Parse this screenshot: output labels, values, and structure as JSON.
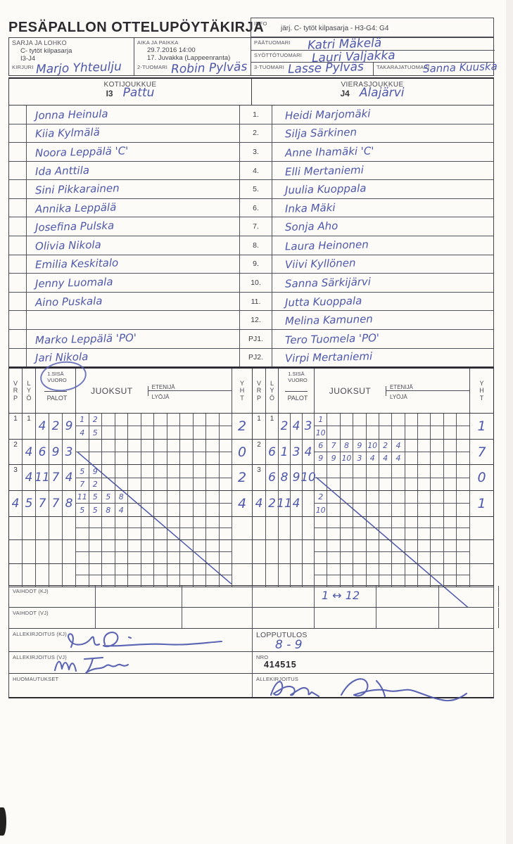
{
  "header": {
    "title": "PESÄPALLON OTTELUPÖYTÄKIRJA",
    "info_label": "INFO",
    "info_value": "järj. C- tytöt kilpasarja - H3-G4: G4",
    "sarja_label": "SARJA JA LOHKO",
    "sarja_line1": "C- tytöt kilpasarja",
    "sarja_line2": "I3-J4",
    "aika_label": "AIKA JA PAIKKA",
    "aika_line1": "29.7.2016 14:00",
    "aika_line2": "17. Juvakka (Lappeenranta)",
    "paatuomari_label": "PÄÄTUOMARI",
    "paatuomari_value": "Katri Mäkelä",
    "syottotuomari_label": "SYÖTTÖTUOMARI",
    "syottotuomari_value": "Lauri Valjakka",
    "kirjuri_label": "KIRJURI",
    "kirjuri_value": "Marjo Yhteulju",
    "tuomari2_label": "2-TUOMARI",
    "tuomari2_value": "Robin Pylväs",
    "tuomari3_label": "3-TUOMARI",
    "tuomari3_value": "Lasse Pylväs",
    "takaraja_label": "TAKARAJATUOMARI",
    "takaraja_value": "Sanna Kuuska"
  },
  "teams": {
    "home_label": "KOTIJOUKKUE",
    "home_code": "I3",
    "home_name": "Pattu",
    "away_label": "VIERASJOUKKUE",
    "away_code": "J4",
    "away_name": "Alajärvi"
  },
  "roster": {
    "rows": [
      {
        "num": "1.",
        "home": "Jonna Heinula",
        "away": "Heidi Marjomäki"
      },
      {
        "num": "2.",
        "home": "Kiia Kylmälä",
        "away": "Silja Särkinen"
      },
      {
        "num": "3.",
        "home": "Noora Leppälä  'C'",
        "away": "Anne Ihamäki 'C'"
      },
      {
        "num": "4.",
        "home": "Ida Anttila",
        "away": "Elli Mertaniemi"
      },
      {
        "num": "5.",
        "home": "Sini Pikkarainen",
        "away": "Juulia Kuoppala"
      },
      {
        "num": "6.",
        "home": "Annika Leppälä",
        "away": "Inka Mäki"
      },
      {
        "num": "7.",
        "home": "Josefina Pulska",
        "away": "Sonja Aho"
      },
      {
        "num": "8.",
        "home": "Olivia Nikola",
        "away": "Laura Heinonen"
      },
      {
        "num": "9.",
        "home": "Emilia Keskitalo",
        "away": "Viivi Kyllönen"
      },
      {
        "num": "10.",
        "home": "Jenny Luomala",
        "away": "Sanna Särkijärvi"
      },
      {
        "num": "11.",
        "home": "Aino Puskala",
        "away": "Jutta Kuoppala"
      },
      {
        "num": "12.",
        "home": "",
        "away": "Melina Kamunen"
      },
      {
        "num": "PJ1.",
        "home": "Marko Leppälä 'PO'",
        "away": "Tero Tuomela 'PO'"
      },
      {
        "num": "PJ2.",
        "home": "Jari Nikola",
        "away": "Virpi Mertaniemi"
      }
    ]
  },
  "grid": {
    "headers": {
      "vrp": "VRP",
      "lyo": "LYÖ",
      "sisavuoro_line1": "1.SISÄ",
      "sisavuoro_line2": "VUORO",
      "palot": "PALOT",
      "juoksut": "JUOKSUT",
      "etenija": "ETENIJÄ",
      "lyoja": "LYÖJÄ",
      "yht": "YHT"
    },
    "left_rows": [
      {
        "vrp": "1",
        "vrp_hw": false,
        "lyo": "1",
        "lyo_hw": false,
        "palot": [
          "4",
          "2",
          "9"
        ],
        "top": [
          "1",
          "2"
        ],
        "bottom": [
          "4",
          "5"
        ],
        "yht": "2",
        "slash": false
      },
      {
        "vrp": "2",
        "vrp_hw": false,
        "lyo": "4",
        "lyo_hw": true,
        "palot": [
          "6",
          "9",
          "3"
        ],
        "top": [],
        "bottom": [],
        "yht": "0",
        "slash": true
      },
      {
        "vrp": "3",
        "vrp_hw": false,
        "lyo": "4",
        "lyo_hw": true,
        "palot": [
          "11",
          "7",
          "4"
        ],
        "top": [
          "5",
          "9"
        ],
        "bottom": [
          "7",
          "2"
        ],
        "yht": "2",
        "slash": false
      },
      {
        "vrp": "4",
        "vrp_hw": true,
        "lyo": "5",
        "lyo_hw": true,
        "palot": [
          "7",
          "7",
          "8"
        ],
        "top": [
          "11",
          "5",
          "5",
          "8"
        ],
        "bottom": [
          "5",
          "5",
          "8",
          "4"
        ],
        "yht": "4",
        "slash": false
      }
    ],
    "right_rows": [
      {
        "vrp": "1",
        "vrp_hw": false,
        "lyo": "1",
        "lyo_hw": false,
        "palot": [
          "2",
          "4",
          "3"
        ],
        "top": [
          "1"
        ],
        "bottom": [
          "10"
        ],
        "yht": "1",
        "slash": false
      },
      {
        "vrp": "2",
        "vrp_hw": false,
        "lyo": "6",
        "lyo_hw": true,
        "palot": [
          "1",
          "3",
          "4"
        ],
        "top": [
          "6",
          "7",
          "8",
          "9",
          "10",
          "2",
          "4"
        ],
        "bottom": [
          "9",
          "9",
          "10",
          "3",
          "4",
          "4",
          "4"
        ],
        "yht": "7",
        "slash": false
      },
      {
        "vrp": "3",
        "vrp_hw": false,
        "lyo": "6",
        "lyo_hw": true,
        "palot": [
          "8",
          "9",
          "10"
        ],
        "top": [],
        "bottom": [],
        "yht": "0",
        "slash": true
      },
      {
        "vrp": "4",
        "vrp_hw": true,
        "lyo": "2",
        "lyo_hw": true,
        "palot": [
          "11",
          "4",
          ""
        ],
        "top": [
          "2"
        ],
        "bottom": [
          "10"
        ],
        "yht": "1",
        "slash": false
      }
    ],
    "empty_row_count": 3
  },
  "substitutions": {
    "kj_label": "VAIHDOT (KJ)",
    "kj_value": "1 ↔ 12",
    "vj_label": "VAIHDOT (VJ)"
  },
  "footer": {
    "allekirjoitus_kj_label": "ALLEKIRJOITUS (KJ)",
    "allekirjoitus_vj_label": "ALLEKIRJOITUS (VJ)",
    "huomautukset_label": "HUOMAUTUKSET",
    "lopputulos_label": "LOPPUTULOS",
    "lopputulos_value": "8 - 9",
    "nro_label": "NRO",
    "nro_value": "414515",
    "allekirjoitus_label": "ALLEKIRJOITUS"
  },
  "colors": {
    "ink": "#4d57ab",
    "line": "#4e4e58"
  }
}
